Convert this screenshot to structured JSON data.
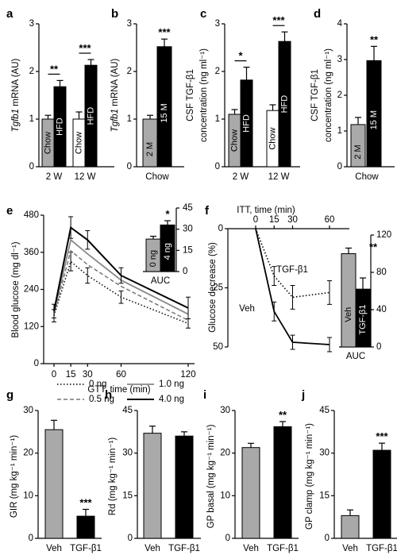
{
  "chart_data": [
    {
      "panel": "a",
      "type": "bar",
      "ylabel_italic": "Tgfb1",
      "ylabel_rest": "mRNA (AU)",
      "ylim": [
        0,
        3
      ],
      "yticks": [
        "0",
        "1",
        "2",
        "3"
      ],
      "groups": [
        "2 W",
        "12 W"
      ],
      "series": [
        {
          "name": "Chow",
          "values": [
            1.0,
            1.0
          ],
          "errors": [
            0.08,
            0.15
          ]
        },
        {
          "name": "HFD",
          "values": [
            1.68,
            2.13
          ],
          "errors": [
            0.13,
            0.12
          ]
        }
      ],
      "significance": [
        "**",
        "***"
      ]
    },
    {
      "panel": "b",
      "type": "bar",
      "ylabel_italic": "Tgfb1",
      "ylabel_rest": "mRNA (AU)",
      "ylim": [
        0,
        3
      ],
      "yticks": [
        "0",
        "1",
        "2",
        "3"
      ],
      "xlabel": "Chow",
      "categories": [
        "2 M",
        "15 M"
      ],
      "values": [
        1.0,
        2.52
      ],
      "errors": [
        0.08,
        0.16
      ],
      "significance": "***"
    },
    {
      "panel": "c",
      "type": "bar",
      "ylabel": "CSF TGF-β1",
      "ylabel2": "concentration (ng ml⁻¹)",
      "ylim": [
        0,
        3
      ],
      "yticks": [
        "0",
        "1",
        "2",
        "3"
      ],
      "groups": [
        "2 W",
        "12 W"
      ],
      "series": [
        {
          "name": "Chow",
          "values": [
            1.1,
            1.18
          ],
          "errors": [
            0.1,
            0.12
          ]
        },
        {
          "name": "HFD",
          "values": [
            1.82,
            2.63
          ],
          "errors": [
            0.27,
            0.2
          ]
        }
      ],
      "significance": [
        "*",
        "***"
      ]
    },
    {
      "panel": "d",
      "type": "bar",
      "ylabel": "CSF TGF-β1",
      "ylabel2": "concentration (ng ml⁻¹)",
      "ylim": [
        0,
        4
      ],
      "yticks": [
        "0",
        "1",
        "2",
        "3",
        "4"
      ],
      "xlabel": "Chow",
      "categories": [
        "2 M",
        "15 M"
      ],
      "values": [
        1.18,
        2.97
      ],
      "errors": [
        0.2,
        0.4
      ],
      "significance": "**"
    },
    {
      "panel": "e",
      "type": "line",
      "xlabel": "GTT, time (min)",
      "ylabel": "Blood glucose (mg dl⁻¹)",
      "x": [
        0,
        15,
        30,
        60,
        120
      ],
      "xticks": [
        "0",
        "15",
        "30",
        "60",
        "120"
      ],
      "ylim": [
        0,
        480
      ],
      "yticks": [
        "0",
        "120",
        "240",
        "360",
        "480"
      ],
      "series": [
        {
          "name": "0 ng",
          "style": "dotted",
          "values": [
            155,
            330,
            285,
            215,
            130
          ],
          "errors": [
            20,
            30,
            25,
            20,
            15
          ]
        },
        {
          "name": "0.5 ng",
          "style": "dashed",
          "values": [
            160,
            365,
            320,
            250,
            140
          ],
          "errors": [
            20,
            30,
            25,
            20,
            15
          ]
        },
        {
          "name": "1.0 ng",
          "style": "solid-gray",
          "values": [
            165,
            400,
            355,
            270,
            160
          ],
          "errors": [
            20,
            30,
            25,
            20,
            15
          ]
        },
        {
          "name": "4.0 ng",
          "style": "solid-black",
          "values": [
            170,
            440,
            400,
            285,
            180
          ],
          "errors": [
            22,
            35,
            30,
            25,
            35
          ]
        }
      ],
      "inset": {
        "xlabel": "AUC",
        "ylim": [
          0,
          45
        ],
        "yticks": [
          "0",
          "15",
          "30",
          "45"
        ],
        "categories": [
          "0 ng",
          "4 ng"
        ],
        "values": [
          23,
          33
        ],
        "errors": [
          2,
          3
        ],
        "significance": "*"
      }
    },
    {
      "panel": "f",
      "type": "line",
      "xlabel": "ITT, time (min)",
      "ylabel": "Glucose decrease (%)",
      "x": [
        0,
        15,
        30,
        60
      ],
      "xticks": [
        "0",
        "15",
        "30",
        "60"
      ],
      "ylim": [
        0,
        50
      ],
      "yticks": [
        "0",
        "25",
        "50"
      ],
      "series": [
        {
          "name": "TGF-β1",
          "style": "dotted",
          "values": [
            0,
            20,
            29,
            27
          ],
          "errors": [
            0,
            4,
            5,
            5
          ]
        },
        {
          "name": "Veh",
          "style": "solid",
          "values": [
            0,
            35,
            48,
            49
          ],
          "errors": [
            0,
            4,
            3,
            3
          ]
        }
      ],
      "inset": {
        "xlabel": "AUC",
        "ylim": [
          0,
          120
        ],
        "yticks": [
          "0",
          "40",
          "80",
          "120"
        ],
        "categories": [
          "Veh",
          "TGF-β1"
        ],
        "values": [
          100,
          62
        ],
        "errors": [
          6,
          12
        ],
        "significance": "**"
      }
    },
    {
      "panel": "g",
      "type": "bar",
      "ylabel": "GIR (mg kg⁻¹ min⁻¹)",
      "ylim": [
        0,
        30
      ],
      "yticks": [
        "0",
        "10",
        "20",
        "30"
      ],
      "categories": [
        "Veh",
        "TGF-β1"
      ],
      "values": [
        25.5,
        5.2
      ],
      "errors": [
        2.2,
        1.6
      ],
      "significance": "***"
    },
    {
      "panel": "h",
      "type": "bar",
      "ylabel": "Rd (mg kg⁻¹ min⁻¹)",
      "ylim": [
        0,
        45
      ],
      "yticks": [
        "0",
        "15",
        "30",
        "45"
      ],
      "categories": [
        "Veh",
        "TGF-β1"
      ],
      "values": [
        37,
        36
      ],
      "errors": [
        2.5,
        1.5
      ],
      "significance": ""
    },
    {
      "panel": "i",
      "type": "bar",
      "ylabel": "GP basal (mg kg⁻¹ min⁻¹)",
      "ylim": [
        0,
        30
      ],
      "yticks": [
        "0",
        "10",
        "20",
        "30"
      ],
      "categories": [
        "Veh",
        "TGF-β1"
      ],
      "values": [
        21.3,
        26.2
      ],
      "errors": [
        1.0,
        1.2
      ],
      "significance": "**"
    },
    {
      "panel": "j",
      "type": "bar",
      "ylabel": "GP clamp (mg kg⁻¹ min⁻¹)",
      "ylim": [
        0,
        45
      ],
      "yticks": [
        "0",
        "15",
        "30",
        "45"
      ],
      "categories": [
        "Veh",
        "TGF-β1"
      ],
      "values": [
        8,
        31
      ],
      "errors": [
        2,
        2.5
      ],
      "significance": "***"
    }
  ],
  "colors": {
    "gray": "#a9a9a9",
    "black": "#000000",
    "white": "#ffffff"
  }
}
